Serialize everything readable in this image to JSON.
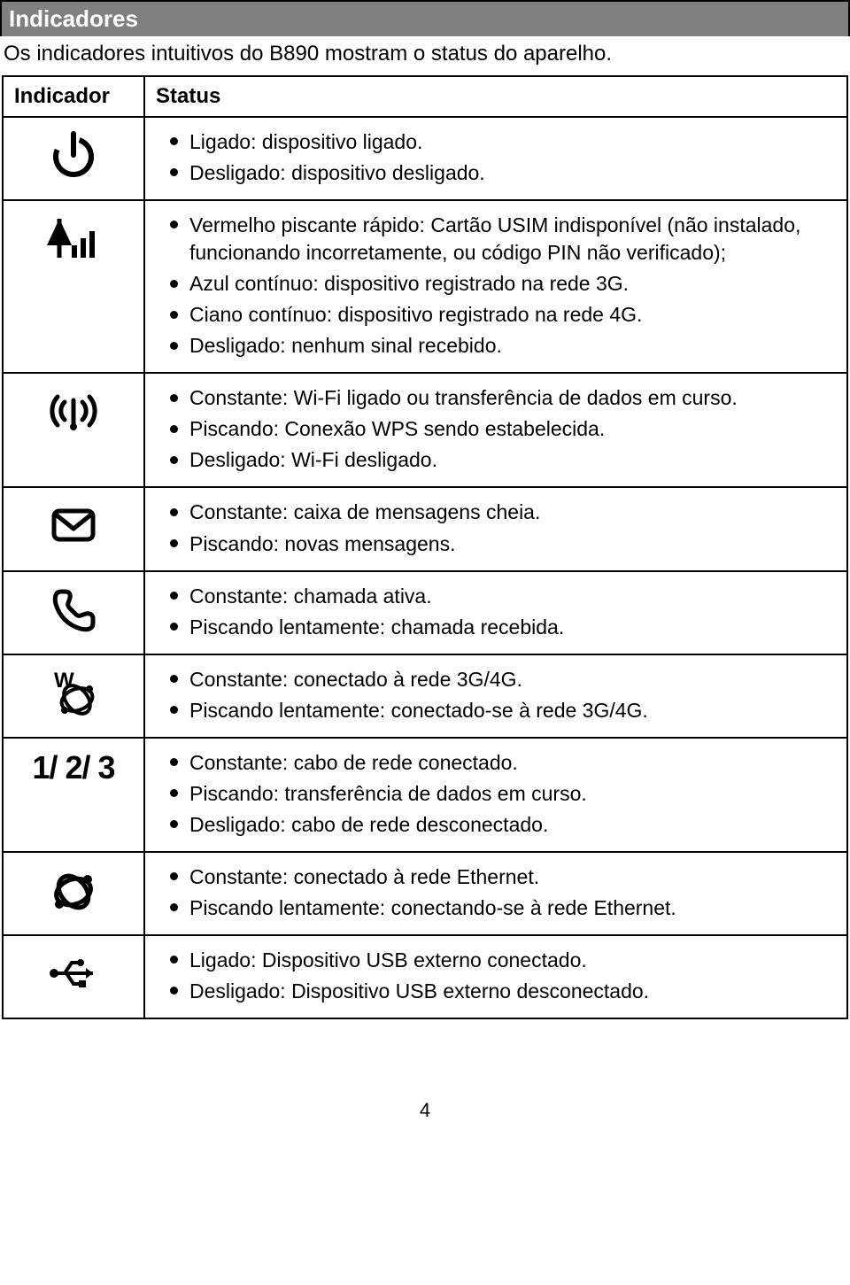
{
  "title": "Indicadores",
  "subtitle": "Os indicadores intuitivos do B890 mostram o status do aparelho.",
  "headers": {
    "indicator": "Indicador",
    "status": "Status"
  },
  "rows": [
    {
      "icon": "power",
      "items": [
        "Ligado: dispositivo ligado.",
        "Desligado: dispositivo desligado."
      ]
    },
    {
      "icon": "signal",
      "items": [
        "Vermelho piscante rápido: Cartão USIM indisponível (não instalado, funcionando incorretamente, ou código PIN não verificado);",
        "Azul contínuo: dispositivo registrado na rede 3G.",
        "Ciano contínuo: dispositivo registrado na rede 4G.",
        "Desligado: nenhum sinal recebido."
      ]
    },
    {
      "icon": "wifi",
      "items": [
        "Constante: Wi-Fi ligado ou transferência de dados em curso.",
        "Piscando: Conexão WPS sendo estabelecida.",
        "Desligado: Wi-Fi desligado."
      ]
    },
    {
      "icon": "mail",
      "items": [
        "Constante: caixa de mensagens cheia.",
        "Piscando: novas mensagens."
      ]
    },
    {
      "icon": "phone",
      "items": [
        "Constante: chamada ativa.",
        "Piscando lentamente: chamada recebida."
      ]
    },
    {
      "icon": "globe-w",
      "items": [
        "Constante: conectado à rede 3G/4G.",
        "Piscando lentamente: conectado-se à rede 3G/4G."
      ]
    },
    {
      "icon": "lan-123",
      "text_label": "1/ 2/ 3",
      "items": [
        "Constante: cabo de rede conectado.",
        "Piscando: transferência de dados em curso.",
        "Desligado: cabo de rede desconectado."
      ]
    },
    {
      "icon": "globe",
      "items": [
        "Constante: conectado à rede Ethernet.",
        "Piscando lentamente: conectando-se à rede Ethernet."
      ]
    },
    {
      "icon": "usb",
      "items": [
        "Ligado: Dispositivo USB externo conectado.",
        "Desligado: Dispositivo USB externo desconectado."
      ]
    }
  ],
  "page_number": "4",
  "colors": {
    "titlebar_bg": "#808080",
    "titlebar_fg": "#ffffff",
    "border": "#000000",
    "text": "#000000",
    "bg": "#ffffff"
  }
}
